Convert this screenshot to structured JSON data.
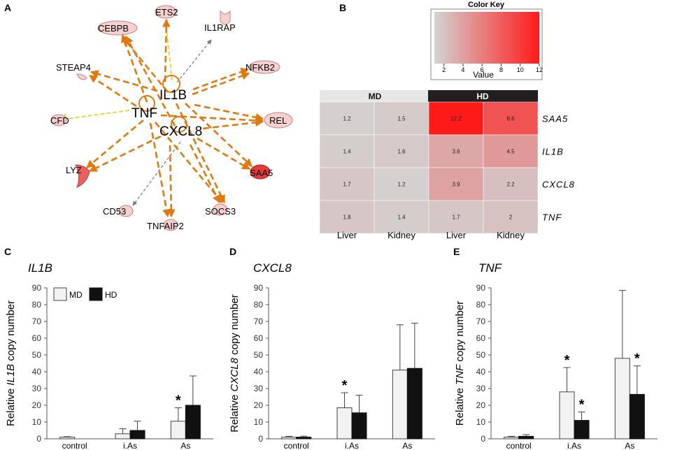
{
  "panels": {
    "a": "A",
    "b": "B",
    "c": "C",
    "d": "D",
    "e": "E"
  },
  "network": {
    "hubs": [
      "IL1B",
      "TNF",
      "CXCL8"
    ],
    "nodes": [
      "ETS2",
      "CEBPB",
      "IL1RAP",
      "STEAP4",
      "NFKB2",
      "CFD",
      "REL",
      "LYZ",
      "SAA5",
      "CD53",
      "SOCS3",
      "TNFAIP2"
    ],
    "colors": {
      "edge": "#e07a10",
      "dashed_gray": "#808080",
      "inhibit": "#e6d42a",
      "node_fill": "#f8d0d0",
      "node_fill_strong": "#e63b3b",
      "node_stroke": "#c08080"
    }
  },
  "heatmap": {
    "color_key_title": "Color Key",
    "color_key_xlabel": "Value",
    "color_key_ticks": [
      "2",
      "4",
      "6",
      "8",
      "10",
      "12"
    ],
    "color_key_range": [
      1,
      12
    ],
    "groups": [
      "MD",
      "HD"
    ],
    "columns": [
      "Liver",
      "Kidney",
      "Liver",
      "Kidney"
    ],
    "rows": [
      "SAA5",
      "IL1B",
      "CXCL8",
      "TNF"
    ],
    "values": [
      [
        "1.2",
        "1.5",
        "12.2",
        "8.6"
      ],
      [
        "1.4",
        "1.6",
        "3.6",
        "4.5"
      ],
      [
        "1.7",
        "1.2",
        "3.9",
        "2.2"
      ],
      [
        "1.8",
        "1.4",
        "1.7",
        "2"
      ]
    ]
  },
  "legend": {
    "md": "MD",
    "hd": "HD"
  },
  "chart_data": [
    {
      "type": "bar",
      "title": "IL1B",
      "ylabel_prefix": "Relative ",
      "ylabel_gene": "IL1B",
      "ylabel_suffix": " copy number",
      "categories": [
        "control",
        "i.As",
        "As"
      ],
      "ylim": [
        0,
        90
      ],
      "yticks": [
        "0",
        "10",
        "20",
        "30",
        "40",
        "50",
        "60",
        "70",
        "80",
        "90"
      ],
      "series": [
        {
          "name": "MD",
          "values": [
            1,
            3,
            10.5
          ],
          "errors": [
            0.3,
            3,
            8
          ]
        },
        {
          "name": "HD",
          "values": [
            0,
            5,
            20
          ],
          "errors": [
            0,
            5.5,
            17.5
          ]
        }
      ],
      "significance": [
        {
          "category": "As",
          "series": "MD",
          "label": "*"
        }
      ]
    },
    {
      "type": "bar",
      "title": "CXCL8",
      "ylabel_prefix": "Relative ",
      "ylabel_gene": "CXCL8",
      "ylabel_suffix": " copy number",
      "categories": [
        "control",
        "i.As",
        "As"
      ],
      "ylim": [
        0,
        90
      ],
      "yticks": [
        "0",
        "10",
        "20",
        "30",
        "40",
        "50",
        "60",
        "70",
        "80",
        "90"
      ],
      "series": [
        {
          "name": "MD",
          "values": [
            1,
            18.5,
            41
          ],
          "errors": [
            0.5,
            9,
            27
          ]
        },
        {
          "name": "HD",
          "values": [
            1,
            15.5,
            42
          ],
          "errors": [
            0.6,
            10.5,
            27
          ]
        }
      ],
      "significance": [
        {
          "category": "i.As",
          "series": "MD",
          "label": "*"
        }
      ]
    },
    {
      "type": "bar",
      "title": "TNF",
      "ylabel_prefix": "Relative ",
      "ylabel_gene": "TNF",
      "ylabel_suffix": " copy number",
      "categories": [
        "control",
        "i.As",
        "As"
      ],
      "ylim": [
        0,
        90
      ],
      "yticks": [
        "0",
        "10",
        "20",
        "30",
        "40",
        "50",
        "60",
        "70",
        "80",
        "90"
      ],
      "series": [
        {
          "name": "MD",
          "values": [
            1,
            28,
            48
          ],
          "errors": [
            0.5,
            14.5,
            40.5
          ]
        },
        {
          "name": "HD",
          "values": [
            1.5,
            11,
            26.5
          ],
          "errors": [
            1,
            5,
            17
          ]
        }
      ],
      "significance": [
        {
          "category": "i.As",
          "series": "MD",
          "label": "*"
        },
        {
          "category": "i.As",
          "series": "HD",
          "label": "*"
        },
        {
          "category": "As",
          "series": "HD",
          "label": "*"
        }
      ]
    }
  ]
}
